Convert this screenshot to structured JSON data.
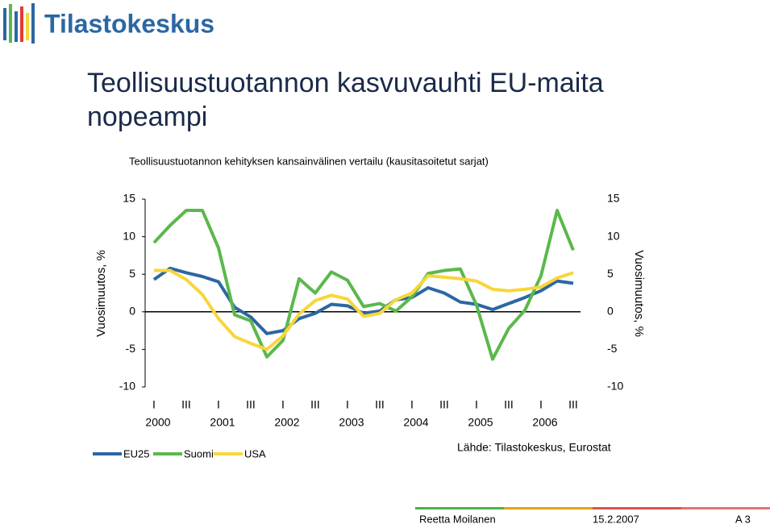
{
  "header": {
    "logo": "Tilastokeskus"
  },
  "title": "Teollisuustuotannon kasvuvauhti EU-maita nopeampi",
  "chart_data": {
    "type": "line",
    "subtitle": "Teollisuustuotannon kehityksen kansainvälinen vertailu (kausitasoitetut sarjat)",
    "ylabel": "Vuosimuutos, %",
    "y2label": "Vuosimuutos, %",
    "categories": [
      "I",
      null,
      "III",
      null,
      "I",
      null,
      "III",
      null,
      "I",
      null,
      "III",
      null,
      "I",
      null,
      "III",
      null,
      "I",
      null,
      "III",
      null,
      "I",
      null,
      "III",
      null,
      "I",
      null,
      "III"
    ],
    "year_labels": [
      "2000",
      "2001",
      "2002",
      "2003",
      "2004",
      "2005",
      "2006"
    ],
    "series": [
      {
        "name": "EU25",
        "color": "#2b67a3",
        "values": [
          4.3,
          5.8,
          5.2,
          4.7,
          4.0,
          0.6,
          -0.7,
          -2.9,
          -2.5,
          -0.9,
          -0.2,
          1.0,
          0.8,
          -0.2,
          0.1,
          1.6,
          1.9,
          3.2,
          2.5,
          1.3,
          1.0,
          0.3,
          1.1,
          1.9,
          2.8,
          4.1,
          3.8
        ]
      },
      {
        "name": "Suomi",
        "color": "#5bb84b",
        "values": [
          9.2,
          11.5,
          13.5,
          13.5,
          8.5,
          -0.4,
          -1.2,
          -6.0,
          -3.8,
          4.4,
          2.5,
          5.3,
          4.2,
          0.7,
          1.1,
          0.1,
          2.0,
          5.1,
          5.5,
          5.7,
          0.9,
          -6.3,
          -2.2,
          0.2,
          4.8,
          13.5,
          8.2
        ]
      },
      {
        "name": "USA",
        "color": "#f8d63a",
        "values": [
          5.5,
          5.5,
          4.3,
          2.3,
          -0.9,
          -3.3,
          -4.2,
          -5.0,
          -3.2,
          -0.3,
          1.5,
          2.2,
          1.7,
          -0.6,
          -0.2,
          1.6,
          2.5,
          4.8,
          4.6,
          4.4,
          4.1,
          3.0,
          2.8,
          3.0,
          3.3,
          4.5,
          5.2
        ]
      }
    ],
    "ylim": [
      -10,
      15
    ],
    "yticks": [
      -10,
      -5,
      0,
      5,
      10,
      15
    ],
    "y2lim": [
      -10,
      15
    ],
    "y2ticks": [
      -10,
      -5,
      0,
      5,
      10,
      15
    ],
    "grid": false,
    "legend": "bottom-left",
    "source": "Lähde: Tilastokeskus, Eurostat"
  },
  "footer": {
    "author": "Reetta Moilanen",
    "date": "15.2.2007",
    "page": "A 3"
  }
}
